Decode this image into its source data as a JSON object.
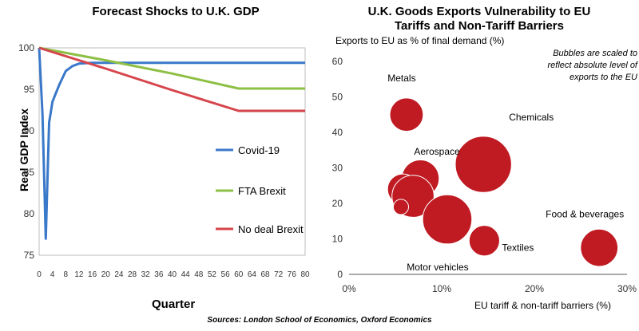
{
  "left_chart": {
    "title": "Forecast Shocks to U.K. GDP",
    "xlabel": "Quarter",
    "ylabel": "Real GDP Index",
    "legend": [
      "Covid-19",
      "FTA Brexit",
      "No deal Brexit"
    ]
  },
  "right_chart": {
    "title_line1": "U.K. Goods Exports Vulnerability to EU",
    "title_line2": "Tariffs and Non-Tariff Barriers",
    "ylabel": "Exports to EU as % of final demand (%)",
    "xlabel": "EU tariff & non-tariff barriers (%)",
    "note_line1": "Bubbles are scaled to",
    "note_line2": "reflect absolute level of",
    "note_line3": "exports to the EU"
  },
  "source": "Sources: London School of Economics, Oxford Economics",
  "colors": {
    "covid": "#3a78c9",
    "fta": "#8dbf44",
    "nodeal": "#d6454b",
    "bubble": "#c01a22"
  },
  "chart_data": [
    {
      "type": "line",
      "title": "Forecast Shocks to U.K. GDP",
      "xlabel": "Quarter",
      "ylabel": "Real GDP Index",
      "xlim": [
        0,
        80
      ],
      "ylim": [
        75,
        100
      ],
      "xticks": [
        0,
        4,
        8,
        12,
        16,
        20,
        24,
        28,
        32,
        36,
        40,
        44,
        48,
        52,
        56,
        60,
        64,
        68,
        72,
        76,
        80
      ],
      "yticks": [
        75,
        80,
        85,
        90,
        95,
        100
      ],
      "legend_position": "right",
      "series": [
        {
          "name": "Covid-19",
          "x": [
            0,
            1,
            2,
            3,
            4,
            5,
            6,
            8,
            10,
            12,
            16,
            20,
            40,
            60,
            80
          ],
          "y": [
            100,
            92,
            77,
            91,
            93.5,
            94.5,
            95.5,
            97.2,
            97.8,
            98.1,
            98.2,
            98.2,
            98.2,
            98.2,
            98.2
          ]
        },
        {
          "name": "FTA Brexit",
          "x": [
            0,
            20,
            40,
            60,
            80
          ],
          "y": [
            100,
            98.5,
            96.9,
            95.1,
            95.1
          ]
        },
        {
          "name": "No deal Brexit",
          "x": [
            0,
            20,
            40,
            60,
            80
          ],
          "y": [
            100,
            97.5,
            94.9,
            92.4,
            92.4
          ]
        }
      ]
    },
    {
      "type": "scatter",
      "title": "U.K. Goods Exports Vulnerability to EU Tariffs and Non-Tariff Barriers",
      "xlabel": "EU tariff & non-tariff barriers (%)",
      "ylabel": "Exports to EU as % of final demand (%)",
      "xlim": [
        0,
        30
      ],
      "ylim": [
        0,
        60
      ],
      "xticks": [
        "0%",
        "10%",
        "20%",
        "30%"
      ],
      "yticks": [
        0,
        10,
        20,
        30,
        40,
        50,
        60
      ],
      "points": [
        {
          "label": "Metals",
          "x": 6.2,
          "y": 45,
          "size": 2.4
        },
        {
          "label": "Chemicals",
          "x": 14.5,
          "y": 31,
          "size": 6.8
        },
        {
          "label": "Aerospace",
          "x": 7.7,
          "y": 27,
          "size": 3.0
        },
        {
          "label": "",
          "x": 5.8,
          "y": 24,
          "size": 2.0
        },
        {
          "label": "",
          "x": 6.9,
          "y": 22,
          "size": 3.8
        },
        {
          "label": "",
          "x": 5.6,
          "y": 19,
          "size": 0.5
        },
        {
          "label": "Motor vehicles",
          "x": 10.6,
          "y": 15.5,
          "size": 5.2
        },
        {
          "label": "Textiles",
          "x": 14.6,
          "y": 9.5,
          "size": 2.0
        },
        {
          "label": "Food & beverages",
          "x": 27.0,
          "y": 7.5,
          "size": 3.0
        }
      ]
    }
  ]
}
